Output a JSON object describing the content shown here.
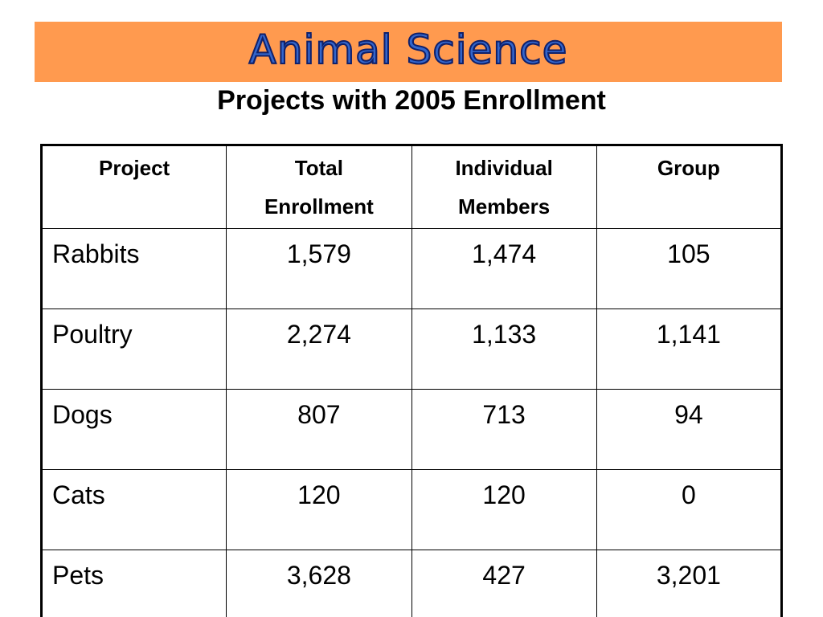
{
  "banner": {
    "title": "Animal Science",
    "background_color": "#FF9A4F",
    "title_color": "#3366CC"
  },
  "subtitle": "Projects with 2005 Enrollment",
  "table": {
    "headers": [
      [
        "Project"
      ],
      [
        "Total",
        "Enrollment"
      ],
      [
        "Individual",
        "Members"
      ],
      [
        "Group"
      ]
    ],
    "rows": [
      [
        "Rabbits",
        "1,579",
        "1,474",
        "105"
      ],
      [
        "Poultry",
        "2,274",
        "1,133",
        "1,141"
      ],
      [
        "Dogs",
        "807",
        "713",
        "94"
      ],
      [
        "Cats",
        "120",
        "120",
        "0"
      ],
      [
        "Pets",
        "3,628",
        "427",
        "3,201"
      ]
    ]
  }
}
